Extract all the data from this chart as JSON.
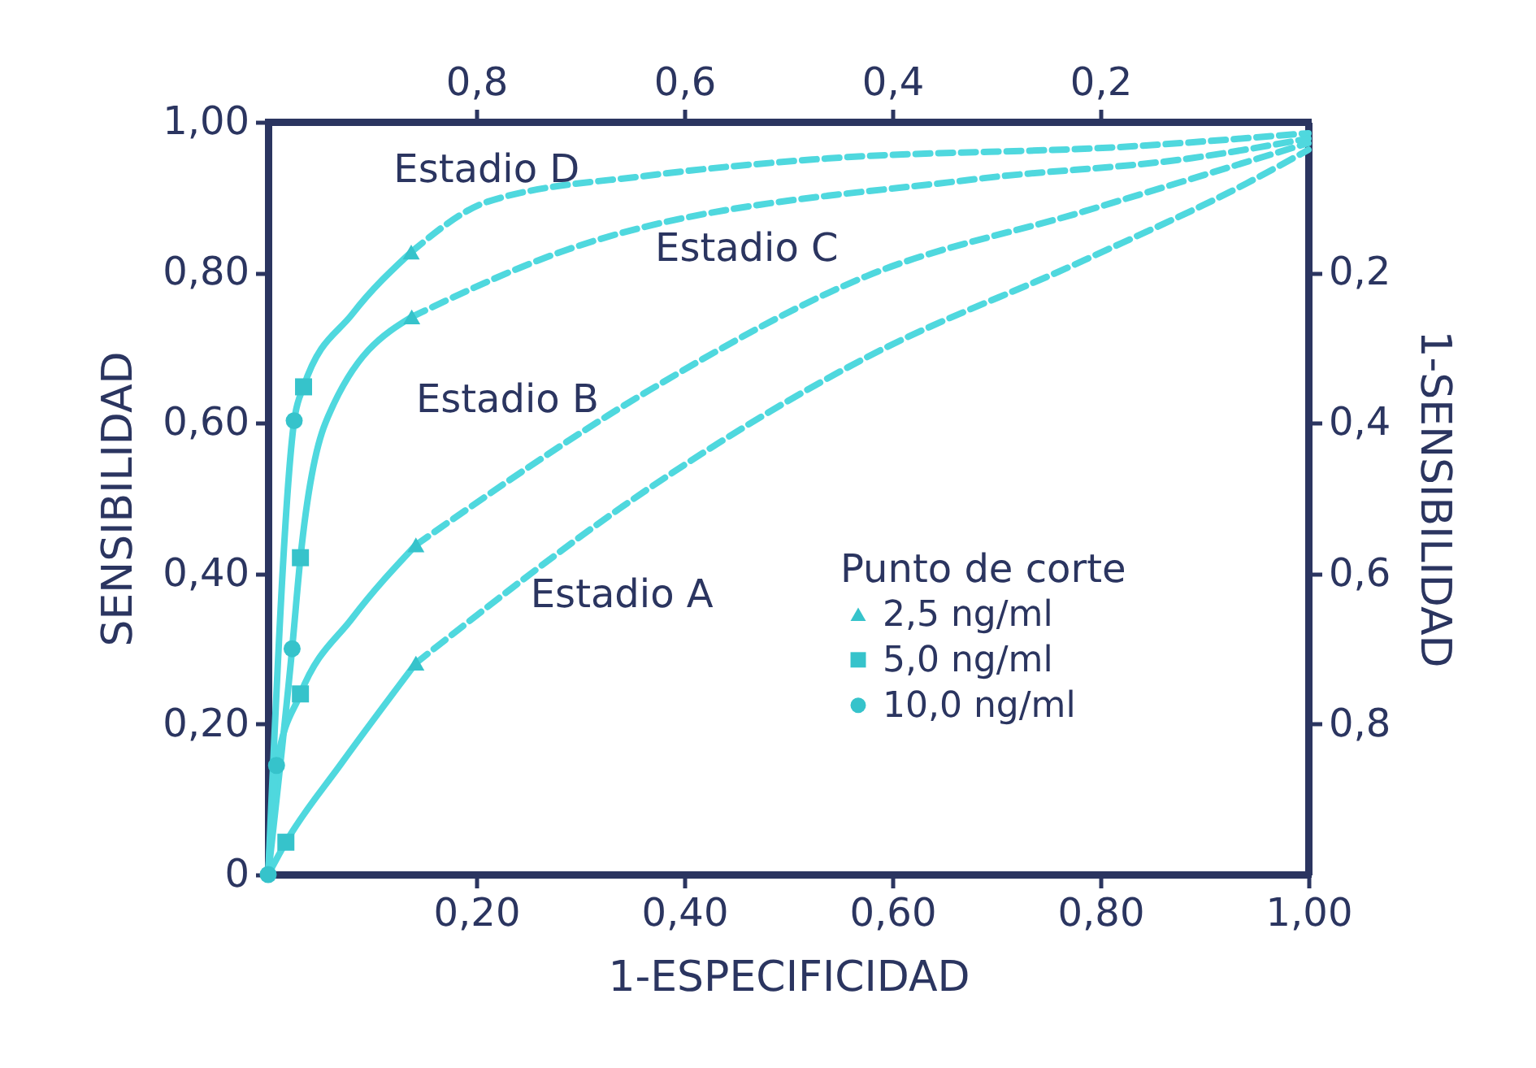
{
  "chart_data": {
    "type": "line",
    "xlabel": "1-ESPECIFICIDAD",
    "ylabel": "SENSIBILIDAD",
    "y2label": "1-SENSIBILIDAD",
    "legend_title": "Punto de corte",
    "xlim": [
      0,
      1
    ],
    "xticks": [
      {
        "value": 0.2,
        "label": "0,20"
      },
      {
        "value": 0.4,
        "label": "0,40"
      },
      {
        "value": 0.6,
        "label": "0,60"
      },
      {
        "value": 0.8,
        "label": "0,80"
      },
      {
        "value": 1,
        "label": "1,00"
      }
    ],
    "ylim": [
      0,
      1
    ],
    "yticks": [
      {
        "value": 0,
        "label": "0"
      },
      {
        "value": 0.2,
        "label": "0,20"
      },
      {
        "value": 0.4,
        "label": "0,40"
      },
      {
        "value": 0.6,
        "label": "0,60"
      },
      {
        "value": 0.8,
        "label": "0,80"
      },
      {
        "value": 1,
        "label": "1,00"
      }
    ],
    "x2lim": [
      1,
      0
    ],
    "x2ticks": [
      {
        "value": 0.8,
        "label": "0,8"
      },
      {
        "value": 0.6,
        "label": "0,6"
      },
      {
        "value": 0.4,
        "label": "0,4"
      },
      {
        "value": 0.2,
        "label": "0,2"
      }
    ],
    "y2lim": [
      1,
      0
    ],
    "y2ticks": [
      {
        "value": 0.2,
        "label": "0,2"
      },
      {
        "value": 0.4,
        "label": "0,4"
      },
      {
        "value": 0.6,
        "label": "0,6"
      },
      {
        "value": 0.8,
        "label": "0,8"
      }
    ],
    "grid": false,
    "legend": "bottom right",
    "series": [
      {
        "type": "line",
        "color": "#4fd8de",
        "line_style": "solid",
        "x": [
          0,
          0.025,
          0.034,
          0.081,
          0.1375
        ],
        "values": [
          0,
          0.603,
          0.648,
          0.745,
          0.827
        ]
      },
      {
        "type": "line",
        "color": "#4fd8de",
        "line_style": "solid",
        "x": [
          0,
          0.023,
          0.031,
          0.055,
          0.138
        ],
        "values": [
          0,
          0.3,
          0.421,
          0.6,
          0.741
        ]
      },
      {
        "type": "line",
        "color": "#4fd8de",
        "line_style": "solid",
        "x": [
          0,
          0.008,
          0.031,
          0.081,
          0.142
        ],
        "values": [
          0,
          0.145,
          0.24,
          0.341,
          0.438
        ]
      },
      {
        "type": "line",
        "color": "#4fd8de",
        "line_style": "solid",
        "x": [
          0,
          0.017,
          0.07,
          0.142
        ],
        "values": [
          0,
          0.043,
          0.147,
          0.281
        ]
      },
      {
        "type": "line",
        "color": "#4fd8de",
        "line_style": "dashed",
        "x": [
          0.1375,
          0.211,
          0.367,
          0.523,
          0.836,
          1
        ],
        "values": [
          0.827,
          0.894,
          0.929,
          0.95,
          0.968,
          0.985
        ]
      },
      {
        "type": "line",
        "color": "#4fd8de",
        "line_style": "dashed",
        "x": [
          0.138,
          0.289,
          0.68,
          0.888,
          1
        ],
        "values": [
          0.741,
          0.831,
          0.924,
          0.952,
          0.978
        ]
      },
      {
        "type": "line",
        "color": "#4fd8de",
        "line_style": "dashed",
        "x": [
          0.142,
          0.367,
          0.575,
          0.784,
          1
        ],
        "values": [
          0.438,
          0.644,
          0.795,
          0.881,
          0.972
        ]
      },
      {
        "type": "line",
        "color": "#4fd8de",
        "line_style": "dashed",
        "x": [
          0.142,
          0.367,
          0.575,
          0.784,
          0.94,
          1
        ],
        "values": [
          0.281,
          0.514,
          0.687,
          0.816,
          0.918,
          0.963
        ]
      },
      {
        "type": "scatter",
        "name": "2,5 ng/ml",
        "color": "#36c3cb",
        "marker": "triangle",
        "x": [
          0.1375,
          0.138,
          0.142,
          0.142
        ],
        "values": [
          0.827,
          0.741,
          0.438,
          0.281
        ]
      },
      {
        "type": "scatter",
        "name": "5,0 ng/ml",
        "color": "#36c3cb",
        "marker": "square",
        "x": [
          0.034,
          0.031,
          0.031,
          0.017
        ],
        "values": [
          0.648,
          0.421,
          0.24,
          0.043
        ]
      },
      {
        "type": "scatter",
        "name": "10,0 ng/ml",
        "color": "#36c3cb",
        "marker": "circle",
        "x": [
          0.025,
          0.023,
          0.008,
          0
        ],
        "values": [
          0.603,
          0.3,
          0.145,
          0
        ]
      }
    ],
    "annotations": [
      "Estadio D",
      "Estadio C",
      "Estadio B",
      "Estadio A"
    ]
  }
}
